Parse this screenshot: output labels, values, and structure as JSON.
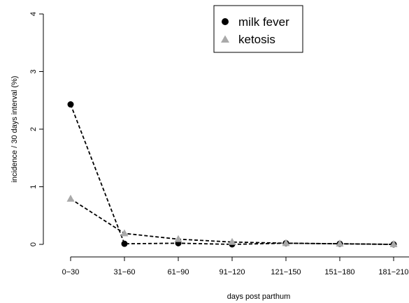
{
  "chart_data": {
    "type": "line",
    "title": "",
    "xlabel": "days post parthum",
    "ylabel": "incidence / 30 days interval (%)",
    "categories": [
      "0−30",
      "31−60",
      "61−90",
      "91−120",
      "121−150",
      "151−180",
      "181−210"
    ],
    "ylim": [
      0,
      4
    ],
    "yticks": [
      "0",
      "1",
      "2",
      "3",
      "4"
    ],
    "grid": false,
    "legend_position": "top-center",
    "series": [
      {
        "name": "milk fever",
        "marker": "circle",
        "color": "#000000",
        "values": [
          2.43,
          0.01,
          0.02,
          0.0,
          0.02,
          0.01,
          0.0
        ]
      },
      {
        "name": "ketosis",
        "marker": "triangle",
        "color": "#a9a9a9",
        "values": [
          0.79,
          0.19,
          0.09,
          0.04,
          0.02,
          0.01,
          0.0
        ]
      }
    ]
  }
}
